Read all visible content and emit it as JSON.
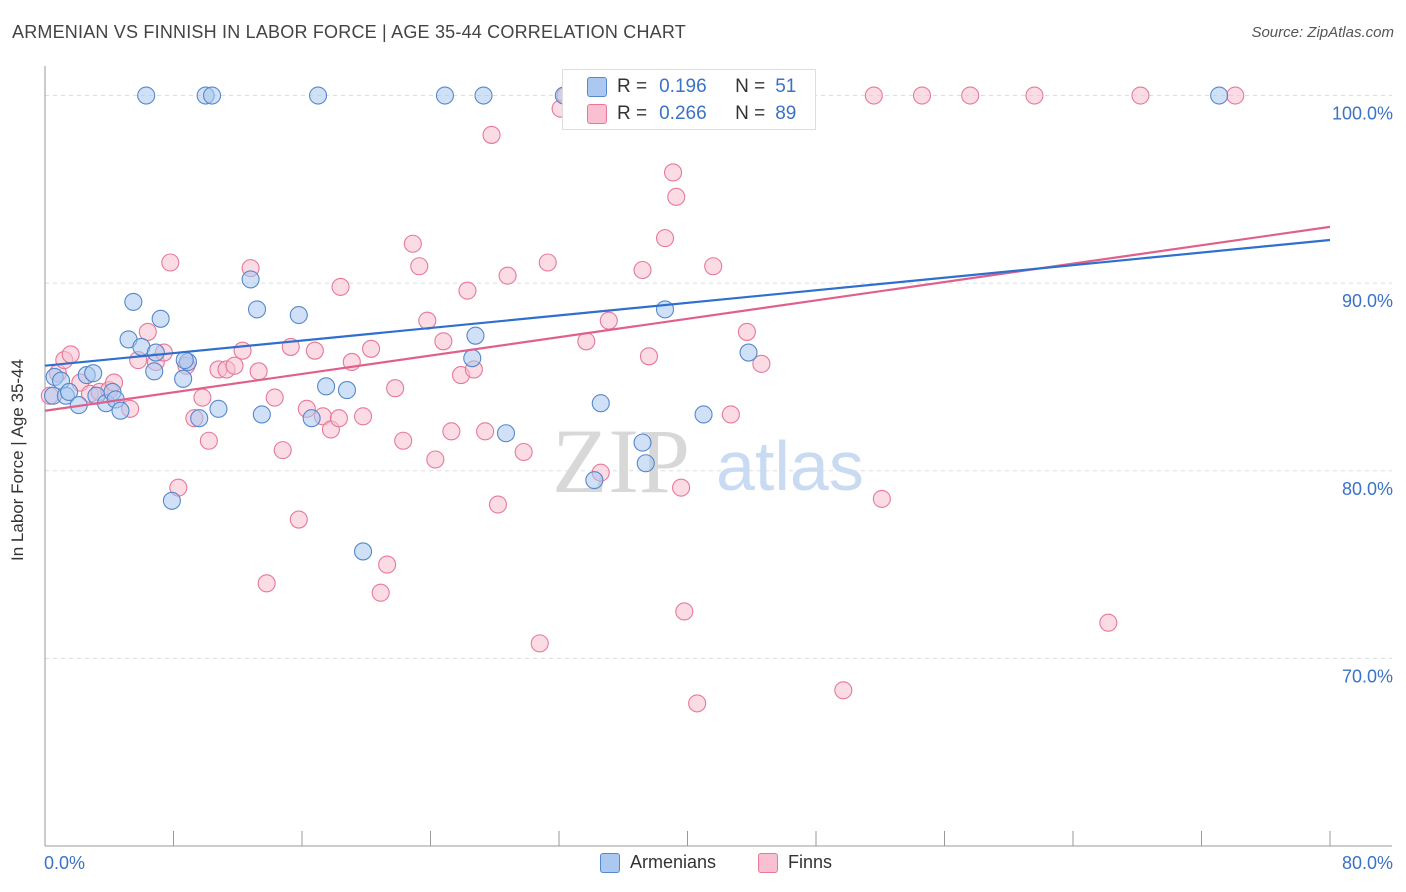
{
  "header": {
    "title": "ARMENIAN VS FINNISH IN LABOR FORCE | AGE 35-44 CORRELATION CHART",
    "source": "Source: ZipAtlas.com"
  },
  "colors": {
    "armenians_fill": "#aac8f0",
    "armenians_stroke": "#5588cc",
    "armenians_line": "#2f6fce",
    "finns_fill": "#f8c0d0",
    "finns_stroke": "#e8789a",
    "finns_line": "#e0608c",
    "axis_text": "#3a72c8",
    "grid": "#dddddd"
  },
  "watermark": {
    "zip": "ZIP",
    "atlas": "atlas"
  },
  "stats": {
    "r_label": "R =",
    "n_label": "N =",
    "armenians": {
      "r": "0.196",
      "n": "51"
    },
    "finns": {
      "r": "0.266",
      "n": "89"
    }
  },
  "legend": {
    "armenians": "Armenians",
    "finns": "Finns"
  },
  "chart_data": {
    "type": "scatter",
    "title": "ARMENIAN VS FINNISH IN LABOR FORCE | AGE 35-44 CORRELATION CHART",
    "xlabel": "",
    "ylabel": "In Labor Force | Age 35-44",
    "xlim": [
      0,
      80
    ],
    "ylim": [
      60,
      102
    ],
    "x_tick_labels": [
      "0.0%",
      "80.0%"
    ],
    "y_ticks": [
      70,
      80,
      90,
      100
    ],
    "y_tick_labels": [
      "70.0%",
      "80.0%",
      "90.0%",
      "100.0%"
    ],
    "series": [
      {
        "name": "Armenians",
        "trend": {
          "x": [
            0,
            80
          ],
          "y": [
            85.6,
            92.3
          ]
        },
        "points": [
          [
            0.5,
            84.0
          ],
          [
            0.6,
            85.0
          ],
          [
            1.0,
            84.8
          ],
          [
            1.3,
            84.0
          ],
          [
            1.5,
            84.2
          ],
          [
            2.1,
            83.5
          ],
          [
            2.6,
            85.1
          ],
          [
            3.2,
            84.0
          ],
          [
            3.8,
            83.6
          ],
          [
            4.2,
            84.2
          ],
          [
            4.4,
            83.8
          ],
          [
            4.7,
            83.2
          ],
          [
            5.2,
            87.0
          ],
          [
            5.5,
            89.0
          ],
          [
            6.0,
            86.6
          ],
          [
            6.3,
            100.0
          ],
          [
            6.8,
            85.3
          ],
          [
            7.2,
            88.1
          ],
          [
            7.9,
            78.4
          ],
          [
            8.6,
            84.9
          ],
          [
            8.9,
            85.8
          ],
          [
            9.6,
            82.8
          ],
          [
            10.0,
            100.0
          ],
          [
            10.4,
            100.0
          ],
          [
            10.8,
            83.3
          ],
          [
            12.8,
            90.2
          ],
          [
            13.2,
            88.6
          ],
          [
            13.5,
            83.0
          ],
          [
            15.8,
            88.3
          ],
          [
            16.6,
            82.8
          ],
          [
            17.0,
            100.0
          ],
          [
            17.5,
            84.5
          ],
          [
            18.8,
            84.3
          ],
          [
            19.8,
            75.7
          ],
          [
            24.9,
            100.0
          ],
          [
            26.6,
            86.0
          ],
          [
            26.8,
            87.2
          ],
          [
            27.3,
            100.0
          ],
          [
            28.7,
            82.0
          ],
          [
            32.3,
            100.0
          ],
          [
            34.2,
            79.5
          ],
          [
            34.6,
            83.6
          ],
          [
            37.2,
            81.5
          ],
          [
            37.4,
            80.4
          ],
          [
            38.6,
            88.6
          ],
          [
            41.0,
            83.0
          ],
          [
            43.8,
            86.3
          ],
          [
            73.1,
            100.0
          ],
          [
            3.0,
            85.2
          ],
          [
            6.9,
            86.3
          ],
          [
            8.7,
            85.9
          ]
        ]
      },
      {
        "name": "Finns",
        "trend": {
          "x": [
            0,
            80
          ],
          "y": [
            83.2,
            93.0
          ]
        },
        "points": [
          [
            0.3,
            84.0
          ],
          [
            0.8,
            85.2
          ],
          [
            1.2,
            85.9
          ],
          [
            1.6,
            86.2
          ],
          [
            2.2,
            84.7
          ],
          [
            2.8,
            84.1
          ],
          [
            3.4,
            84.2
          ],
          [
            4.0,
            84.3
          ],
          [
            4.3,
            84.7
          ],
          [
            5.3,
            83.3
          ],
          [
            5.8,
            85.9
          ],
          [
            6.4,
            87.4
          ],
          [
            6.9,
            85.8
          ],
          [
            7.4,
            86.3
          ],
          [
            7.8,
            91.1
          ],
          [
            8.3,
            79.1
          ],
          [
            8.8,
            85.6
          ],
          [
            9.3,
            82.8
          ],
          [
            9.8,
            83.9
          ],
          [
            10.2,
            81.6
          ],
          [
            10.8,
            85.4
          ],
          [
            11.3,
            85.4
          ],
          [
            11.8,
            85.6
          ],
          [
            12.3,
            86.4
          ],
          [
            12.8,
            90.8
          ],
          [
            13.3,
            85.3
          ],
          [
            13.8,
            74.0
          ],
          [
            14.3,
            83.9
          ],
          [
            14.8,
            81.1
          ],
          [
            15.3,
            86.6
          ],
          [
            15.8,
            77.4
          ],
          [
            16.3,
            83.3
          ],
          [
            16.8,
            86.4
          ],
          [
            17.3,
            82.9
          ],
          [
            17.8,
            82.2
          ],
          [
            18.3,
            82.8
          ],
          [
            18.4,
            89.8
          ],
          [
            19.1,
            85.8
          ],
          [
            19.8,
            82.9
          ],
          [
            20.3,
            86.5
          ],
          [
            20.9,
            73.5
          ],
          [
            21.3,
            75.0
          ],
          [
            21.8,
            84.4
          ],
          [
            22.3,
            81.6
          ],
          [
            22.9,
            92.1
          ],
          [
            23.3,
            90.9
          ],
          [
            23.8,
            88.0
          ],
          [
            24.3,
            80.6
          ],
          [
            24.8,
            86.9
          ],
          [
            25.3,
            82.1
          ],
          [
            25.9,
            85.1
          ],
          [
            26.3,
            89.6
          ],
          [
            26.7,
            85.4
          ],
          [
            27.4,
            82.1
          ],
          [
            27.8,
            97.9
          ],
          [
            28.2,
            78.2
          ],
          [
            28.8,
            90.4
          ],
          [
            29.8,
            81.0
          ],
          [
            30.8,
            70.8
          ],
          [
            31.3,
            91.1
          ],
          [
            32.1,
            99.3
          ],
          [
            32.4,
            100.0
          ],
          [
            33.1,
            100.0
          ],
          [
            33.7,
            86.9
          ],
          [
            34.6,
            79.9
          ],
          [
            35.1,
            88.0
          ],
          [
            35.6,
            100.0
          ],
          [
            37.2,
            90.7
          ],
          [
            37.6,
            86.1
          ],
          [
            38.6,
            92.4
          ],
          [
            39.1,
            95.9
          ],
          [
            39.3,
            94.6
          ],
          [
            39.6,
            79.1
          ],
          [
            39.8,
            72.5
          ],
          [
            40.6,
            67.6
          ],
          [
            41.6,
            90.9
          ],
          [
            42.7,
            83.0
          ],
          [
            43.7,
            87.4
          ],
          [
            44.6,
            85.7
          ],
          [
            45.1,
            100.0
          ],
          [
            49.7,
            68.3
          ],
          [
            51.6,
            100.0
          ],
          [
            52.1,
            78.5
          ],
          [
            54.6,
            100.0
          ],
          [
            57.6,
            100.0
          ],
          [
            61.6,
            100.0
          ],
          [
            66.2,
            71.9
          ],
          [
            68.2,
            100.0
          ],
          [
            74.1,
            100.0
          ]
        ]
      }
    ]
  }
}
